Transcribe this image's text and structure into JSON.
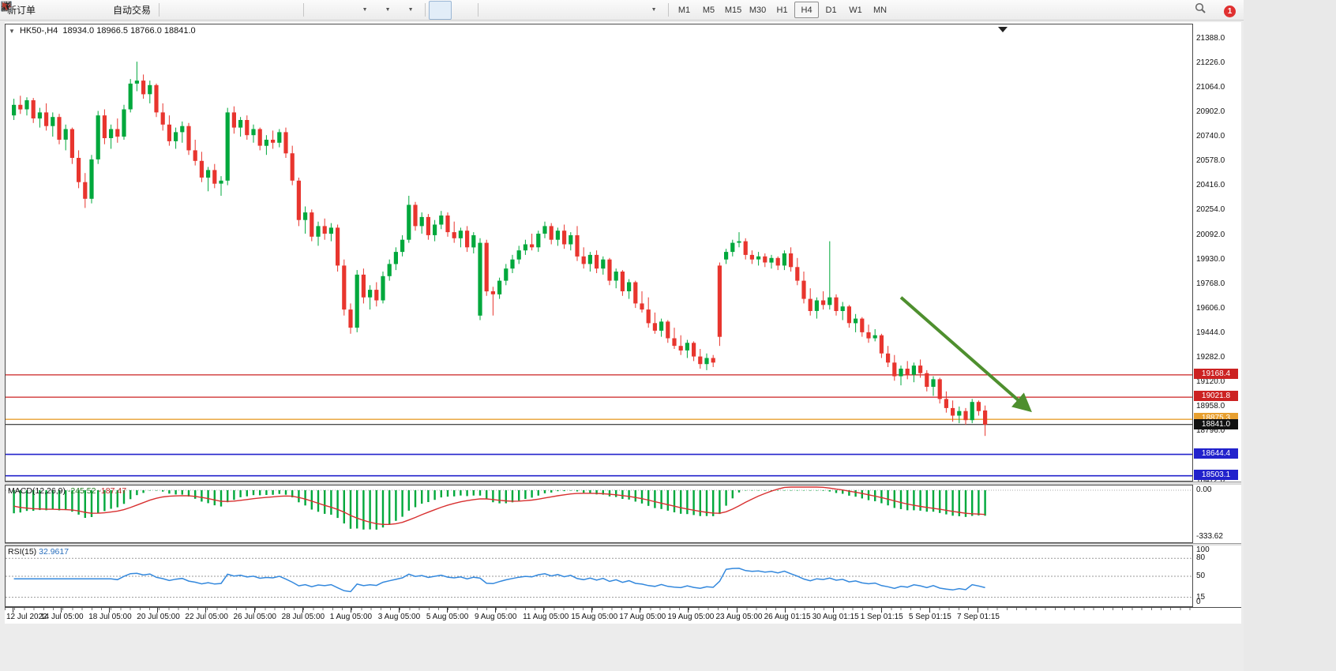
{
  "toolbar": {
    "new_order_label": "新订单",
    "autotrading_label": "自动交易",
    "timeframes": [
      "M1",
      "M5",
      "M15",
      "M30",
      "H1",
      "H4",
      "D1",
      "W1",
      "MN"
    ],
    "active_timeframe": "H4",
    "notification_count": "1",
    "icons": [
      "new-order",
      "new-chart",
      "community",
      "metaquotes",
      "autotrading",
      "bar-chart",
      "candlestick-chart",
      "line-chart",
      "zoom-in",
      "zoom-out",
      "tile-windows",
      "auto-scroll",
      "chart-shift",
      "indicators",
      "periods",
      "templates",
      "cursor",
      "crosshair",
      "vertical-line",
      "horizontal-line",
      "trendline",
      "equidistant-channel",
      "fibonacci",
      "text",
      "text-label",
      "arrows",
      "search",
      "notifications"
    ]
  },
  "chart_header": {
    "symbol": "HK50-,H4",
    "open": "18934.0",
    "high": "18966.5",
    "low": "18766.0",
    "close": "18841.0"
  },
  "chart_data": {
    "type": "candlestick",
    "symbol": "HK50-",
    "timeframe": "H4",
    "up_color": "#00a83c",
    "down_color": "#e8352e",
    "price_top": 21480,
    "price_bottom": 18460,
    "y_axis_labels": [
      "21388.0",
      "21226.0",
      "21064.0",
      "20902.0",
      "20740.0",
      "20578.0",
      "20416.0",
      "20254.0",
      "20092.0",
      "19930.0",
      "19768.0",
      "19606.0",
      "19444.0",
      "19282.0",
      "19120.0",
      "18958.0",
      "18796.0",
      "18634.0",
      "18472.0"
    ],
    "candles": [
      [
        20880,
        20990,
        20850,
        20950
      ],
      [
        20950,
        21010,
        20890,
        20920
      ],
      [
        20920,
        21000,
        20880,
        20980
      ],
      [
        20980,
        20995,
        20830,
        20860
      ],
      [
        20860,
        20930,
        20800,
        20900
      ],
      [
        20900,
        20960,
        20780,
        20810
      ],
      [
        20810,
        20900,
        20740,
        20870
      ],
      [
        20870,
        20890,
        20690,
        20720
      ],
      [
        20720,
        20820,
        20650,
        20790
      ],
      [
        20790,
        20800,
        20560,
        20600
      ],
      [
        20600,
        20650,
        20400,
        20440
      ],
      [
        20440,
        20500,
        20270,
        20330
      ],
      [
        20330,
        20620,
        20300,
        20590
      ],
      [
        20590,
        20910,
        20560,
        20880
      ],
      [
        20880,
        20920,
        20690,
        20730
      ],
      [
        20730,
        20820,
        20660,
        20790
      ],
      [
        20790,
        20860,
        20700,
        20740
      ],
      [
        20740,
        20950,
        20720,
        20920
      ],
      [
        20920,
        21120,
        20900,
        21090
      ],
      [
        21090,
        21235,
        21040,
        21110
      ],
      [
        21110,
        21150,
        20990,
        21020
      ],
      [
        21020,
        21110,
        20960,
        21080
      ],
      [
        21080,
        21090,
        20870,
        20900
      ],
      [
        20900,
        20960,
        20780,
        20820
      ],
      [
        20820,
        20880,
        20680,
        20710
      ],
      [
        20710,
        20800,
        20660,
        20770
      ],
      [
        20770,
        20840,
        20700,
        20810
      ],
      [
        20810,
        20830,
        20620,
        20650
      ],
      [
        20650,
        20720,
        20550,
        20580
      ],
      [
        20580,
        20640,
        20440,
        20470
      ],
      [
        20470,
        20540,
        20380,
        20520
      ],
      [
        20520,
        20560,
        20400,
        20430
      ],
      [
        20430,
        20480,
        20350,
        20450
      ],
      [
        20450,
        20930,
        20420,
        20900
      ],
      [
        20900,
        20940,
        20760,
        20800
      ],
      [
        20800,
        20870,
        20740,
        20850
      ],
      [
        20850,
        20880,
        20720,
        20750
      ],
      [
        20750,
        20820,
        20700,
        20790
      ],
      [
        20790,
        20800,
        20650,
        20680
      ],
      [
        20680,
        20750,
        20620,
        20720
      ],
      [
        20720,
        20780,
        20660,
        20700
      ],
      [
        20700,
        20790,
        20670,
        20770
      ],
      [
        20770,
        20800,
        20600,
        20630
      ],
      [
        20630,
        20680,
        20420,
        20450
      ],
      [
        20450,
        20470,
        20150,
        20190
      ],
      [
        20190,
        20280,
        20100,
        20240
      ],
      [
        20240,
        20260,
        20050,
        20080
      ],
      [
        20080,
        20180,
        20020,
        20150
      ],
      [
        20150,
        20200,
        20060,
        20100
      ],
      [
        20100,
        20170,
        20050,
        20140
      ],
      [
        20140,
        20160,
        19850,
        19890
      ],
      [
        19890,
        19930,
        19560,
        19600
      ],
      [
        19600,
        19640,
        19440,
        19480
      ],
      [
        19480,
        19860,
        19450,
        19830
      ],
      [
        19830,
        19870,
        19640,
        19680
      ],
      [
        19680,
        19760,
        19600,
        19730
      ],
      [
        19730,
        19780,
        19620,
        19660
      ],
      [
        19660,
        19850,
        19640,
        19820
      ],
      [
        19820,
        19930,
        19790,
        19900
      ],
      [
        19900,
        20010,
        19860,
        19980
      ],
      [
        19980,
        20090,
        19950,
        20060
      ],
      [
        20060,
        20350,
        20040,
        20290
      ],
      [
        20290,
        20310,
        20120,
        20150
      ],
      [
        20150,
        20240,
        20100,
        20210
      ],
      [
        20210,
        20230,
        20060,
        20090
      ],
      [
        20090,
        20190,
        20050,
        20160
      ],
      [
        20160,
        20250,
        20130,
        20220
      ],
      [
        20220,
        20240,
        20080,
        20110
      ],
      [
        20110,
        20180,
        20040,
        20070
      ],
      [
        20070,
        20140,
        20010,
        20120
      ],
      [
        20120,
        20150,
        19980,
        20010
      ],
      [
        20010,
        20110,
        19970,
        20090
      ],
      [
        19560,
        20070,
        19530,
        20040
      ],
      [
        20040,
        20060,
        19690,
        19720
      ],
      [
        19720,
        19750,
        19560,
        19700
      ],
      [
        19700,
        19810,
        19670,
        19790
      ],
      [
        19790,
        19900,
        19760,
        19870
      ],
      [
        19870,
        19960,
        19840,
        19930
      ],
      [
        19930,
        20020,
        19900,
        19990
      ],
      [
        19990,
        20060,
        19960,
        20030
      ],
      [
        20030,
        20100,
        19990,
        20010
      ],
      [
        20010,
        20120,
        19980,
        20100
      ],
      [
        20100,
        20180,
        20070,
        20150
      ],
      [
        20150,
        20170,
        20030,
        20060
      ],
      [
        20060,
        20140,
        20020,
        20120
      ],
      [
        20120,
        20160,
        20000,
        20030
      ],
      [
        20030,
        20110,
        19990,
        20090
      ],
      [
        20090,
        20150,
        19920,
        19950
      ],
      [
        19950,
        20010,
        19870,
        19900
      ],
      [
        19900,
        19980,
        19850,
        19960
      ],
      [
        19960,
        19990,
        19840,
        19870
      ],
      [
        19870,
        19950,
        19830,
        19930
      ],
      [
        19930,
        19940,
        19760,
        19790
      ],
      [
        19790,
        19870,
        19740,
        19850
      ],
      [
        19850,
        19860,
        19690,
        19720
      ],
      [
        19720,
        19800,
        19670,
        19780
      ],
      [
        19780,
        19790,
        19610,
        19640
      ],
      [
        19640,
        19720,
        19580,
        19600
      ],
      [
        19600,
        19680,
        19480,
        19510
      ],
      [
        19510,
        19580,
        19440,
        19460
      ],
      [
        19460,
        19540,
        19420,
        19520
      ],
      [
        19520,
        19530,
        19380,
        19410
      ],
      [
        19410,
        19480,
        19340,
        19360
      ],
      [
        19360,
        19430,
        19300,
        19330
      ],
      [
        19330,
        19400,
        19280,
        19380
      ],
      [
        19380,
        19390,
        19260,
        19290
      ],
      [
        19290,
        19340,
        19210,
        19240
      ],
      [
        19240,
        19310,
        19200,
        19280
      ],
      [
        19280,
        19300,
        19220,
        19250
      ],
      [
        19890,
        19910,
        19360,
        19420
      ],
      [
        19930,
        20000,
        19900,
        19980
      ],
      [
        19980,
        20060,
        19950,
        20040
      ],
      [
        20040,
        20110,
        20010,
        20050
      ],
      [
        20050,
        20070,
        19930,
        19960
      ],
      [
        19960,
        19990,
        19900,
        19930
      ],
      [
        19930,
        19980,
        19890,
        19950
      ],
      [
        19950,
        19970,
        19880,
        19910
      ],
      [
        19910,
        19960,
        19870,
        19940
      ],
      [
        19940,
        19950,
        19860,
        19890
      ],
      [
        19890,
        19990,
        19860,
        19970
      ],
      [
        19970,
        20010,
        19850,
        19880
      ],
      [
        19880,
        19940,
        19760,
        19790
      ],
      [
        19790,
        19850,
        19640,
        19670
      ],
      [
        19670,
        19740,
        19560,
        19590
      ],
      [
        19590,
        19680,
        19540,
        19660
      ],
      [
        19660,
        19720,
        19600,
        19630
      ],
      [
        19630,
        20050,
        19600,
        19680
      ],
      [
        19680,
        19700,
        19560,
        19590
      ],
      [
        19590,
        19650,
        19530,
        19620
      ],
      [
        19620,
        19630,
        19480,
        19510
      ],
      [
        19510,
        19570,
        19450,
        19540
      ],
      [
        19540,
        19550,
        19420,
        19450
      ],
      [
        19450,
        19500,
        19380,
        19410
      ],
      [
        19410,
        19470,
        19390,
        19430
      ],
      [
        19430,
        19440,
        19280,
        19310
      ],
      [
        19310,
        19360,
        19220,
        19250
      ],
      [
        19250,
        19300,
        19130,
        19160
      ],
      [
        19160,
        19230,
        19100,
        19210
      ],
      [
        19210,
        19260,
        19140,
        19170
      ],
      [
        19170,
        19250,
        19120,
        19230
      ],
      [
        19230,
        19270,
        19150,
        19180
      ],
      [
        19180,
        19200,
        19060,
        19090
      ],
      [
        19090,
        19160,
        19030,
        19140
      ],
      [
        19140,
        19150,
        18980,
        19010
      ],
      [
        19010,
        19060,
        18920,
        18950
      ],
      [
        18950,
        19000,
        18860,
        18900
      ],
      [
        18900,
        18960,
        18850,
        18930
      ],
      [
        18930,
        18950,
        18840,
        18870
      ],
      [
        18870,
        19010,
        18850,
        18990
      ],
      [
        18990,
        19000,
        18900,
        18930
      ],
      [
        18934,
        18966.5,
        18766,
        18841
      ]
    ],
    "levels": [
      {
        "price": 19168.4,
        "label": "19168.4",
        "color": "#cc2222",
        "width": 1.2
      },
      {
        "price": 19021.8,
        "label": "19021.8",
        "color": "#cc2222",
        "width": 1.2
      },
      {
        "price": 18875.3,
        "label": "18875.3",
        "color": "#e8a030",
        "width": 1.4
      },
      {
        "price": 18644.4,
        "label": "18644.4",
        "color": "#2222cc",
        "width": 1.6
      },
      {
        "price": 18503.1,
        "label": "18503.1",
        "color": "#2222cc",
        "width": 1.6
      }
    ],
    "current_price": {
      "price": 18841.0,
      "label": "18841.0",
      "color": "#111111"
    },
    "arrow_annotation": {
      "from_index": 137,
      "from_price": 19680,
      "to_index": 156.5,
      "to_price": 18950,
      "color": "#4e8f2e"
    },
    "time_labels": [
      "12 Jul 2022",
      "14 Jul 05:00",
      "18 Jul 05:00",
      "20 Jul 05:00",
      "22 Jul 05:00",
      "26 Jul 05:00",
      "28 Jul 05:00",
      "1 Aug 05:00",
      "3 Aug 05:00",
      "5 Aug 05:00",
      "9 Aug 05:00",
      "11 Aug 05:00",
      "15 Aug 05:00",
      "17 Aug 05:00",
      "19 Aug 05:00",
      "23 Aug 05:00",
      "26 Aug 01:15",
      "30 Aug 01:15",
      "1 Sep 01:15",
      "5 Sep 01:15",
      "7 Sep 01:15"
    ],
    "indicators": {
      "macd": {
        "label": "MACD(12,26,9)",
        "value_main": "-245.52",
        "value_signal": "-187.47",
        "params": [
          12,
          26,
          9
        ],
        "axis_labels": [
          "0.00",
          "-333.62"
        ],
        "min": -333.62,
        "hist_color": "#00a83c",
        "signal_color": "#d83030"
      },
      "rsi": {
        "label": "RSI(15)",
        "value": "32.9617",
        "period": 15,
        "axis_labels": [
          "100",
          "80",
          "50",
          "15",
          "0"
        ],
        "level_lines": [
          80,
          50,
          15
        ],
        "color": "#3388dd"
      }
    }
  }
}
